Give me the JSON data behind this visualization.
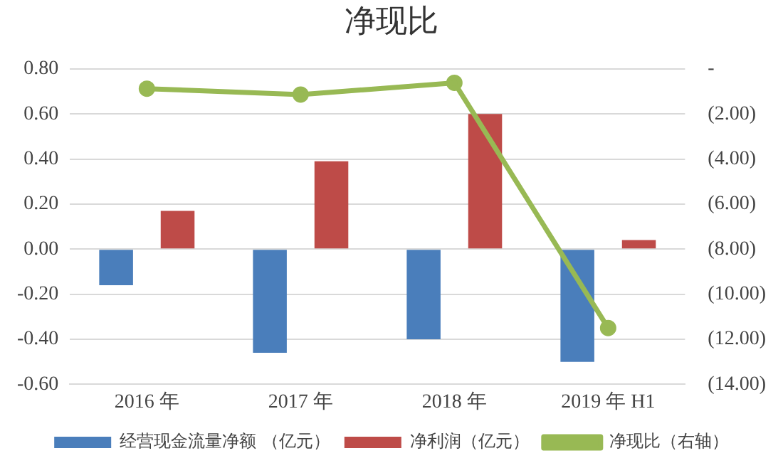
{
  "chart_data": {
    "type": "bar",
    "title": "净现比",
    "categories": [
      "2016 年",
      "2017 年",
      "2018 年",
      "2019 年 H1"
    ],
    "series": [
      {
        "name": "经营现金流量净额 （亿元）",
        "color": "#4a7ebb",
        "values": [
          -0.16,
          -0.46,
          -0.4,
          -0.5
        ]
      },
      {
        "name": "净利润（亿元）",
        "color": "#be4b48",
        "values": [
          0.17,
          0.39,
          0.6,
          0.04
        ]
      },
      {
        "name": "净现比（右轴）",
        "type": "line",
        "axis": "y2",
        "color": "#98b954",
        "values": [
          -0.88,
          -1.14,
          -0.62,
          -11.5
        ]
      }
    ],
    "ylim": [
      -0.6,
      0.8
    ],
    "yticks": [
      {
        "value": -0.6,
        "label": "-0.60"
      },
      {
        "value": -0.4,
        "label": "-0.40"
      },
      {
        "value": -0.2,
        "label": "-0.20"
      },
      {
        "value": 0,
        "label": "0.00"
      },
      {
        "value": 0.2,
        "label": "0.20"
      },
      {
        "value": 0.4,
        "label": "0.40"
      },
      {
        "value": 0.6,
        "label": "0.60"
      },
      {
        "value": 0.8,
        "label": "0.80"
      }
    ],
    "y2lim": [
      -14,
      0
    ],
    "y2ticks": [
      {
        "value": -14,
        "label": "(14.00)"
      },
      {
        "value": -12,
        "label": "(12.00)"
      },
      {
        "value": -10,
        "label": "(10.00)"
      },
      {
        "value": -8,
        "label": "(8.00)"
      },
      {
        "value": -6,
        "label": "(6.00)"
      },
      {
        "value": -4,
        "label": "(4.00)"
      },
      {
        "value": -2,
        "label": "(2.00)"
      },
      {
        "value": 0,
        "label": "-"
      }
    ],
    "grid": "y",
    "legend": "bottom",
    "marker": "circle",
    "line_style": "solid"
  }
}
